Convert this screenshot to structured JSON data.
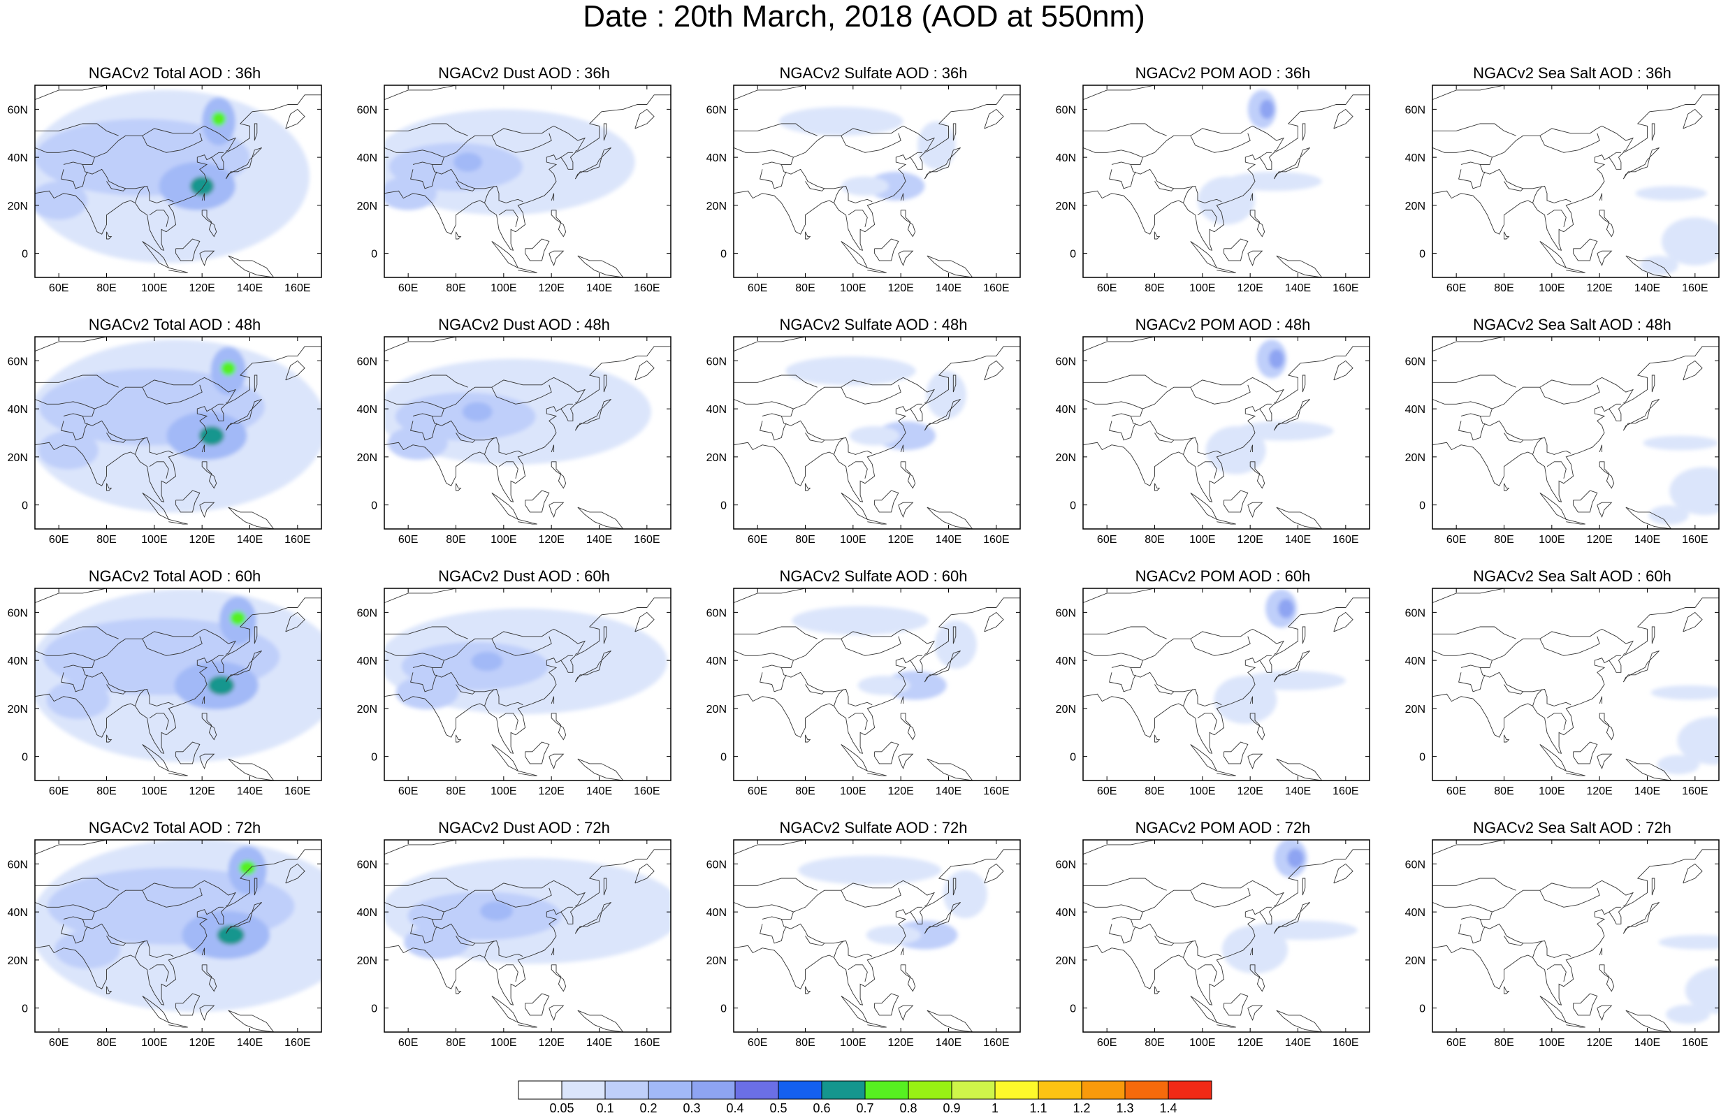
{
  "title": "Date : 20th March, 2018 (AOD at 550nm)",
  "lon_ticks": [
    "60E",
    "80E",
    "100E",
    "120E",
    "140E",
    "160E"
  ],
  "lat_ticks": [
    "60N",
    "40N",
    "20N",
    "0"
  ],
  "panels": [
    [
      {
        "title": "NGACv2 Total AOD : 36h",
        "species": "total",
        "hour": 36
      },
      {
        "title": "NGACv2 Dust AOD : 36h",
        "species": "dust",
        "hour": 36
      },
      {
        "title": "NGACv2 Sulfate AOD : 36h",
        "species": "sulfate",
        "hour": 36
      },
      {
        "title": "NGACv2 POM AOD : 36h",
        "species": "pom",
        "hour": 36
      },
      {
        "title": "NGACv2 Sea Salt AOD : 36h",
        "species": "seasalt",
        "hour": 36
      }
    ],
    [
      {
        "title": "NGACv2 Total AOD : 48h",
        "species": "total",
        "hour": 48
      },
      {
        "title": "NGACv2 Dust AOD : 48h",
        "species": "dust",
        "hour": 48
      },
      {
        "title": "NGACv2 Sulfate AOD : 48h",
        "species": "sulfate",
        "hour": 48
      },
      {
        "title": "NGACv2 POM AOD : 48h",
        "species": "pom",
        "hour": 48
      },
      {
        "title": "NGACv2 Sea Salt AOD : 48h",
        "species": "seasalt",
        "hour": 48
      }
    ],
    [
      {
        "title": "NGACv2 Total AOD : 60h",
        "species": "total",
        "hour": 60
      },
      {
        "title": "NGACv2 Dust AOD : 60h",
        "species": "dust",
        "hour": 60
      },
      {
        "title": "NGACv2 Sulfate AOD : 60h",
        "species": "sulfate",
        "hour": 60
      },
      {
        "title": "NGACv2 POM AOD : 60h",
        "species": "pom",
        "hour": 60
      },
      {
        "title": "NGACv2 Sea Salt AOD : 60h",
        "species": "seasalt",
        "hour": 60
      }
    ],
    [
      {
        "title": "NGACv2 Total AOD : 72h",
        "species": "total",
        "hour": 72
      },
      {
        "title": "NGACv2 Dust AOD : 72h",
        "species": "dust",
        "hour": 72
      },
      {
        "title": "NGACv2 Sulfate AOD : 72h",
        "species": "sulfate",
        "hour": 72
      },
      {
        "title": "NGACv2 POM AOD : 72h",
        "species": "pom",
        "hour": 72
      },
      {
        "title": "NGACv2 Sea Salt  AOD : 72h",
        "species": "seasalt",
        "hour": 72
      }
    ]
  ],
  "colorbar": {
    "labels": [
      "0.05",
      "0.1",
      "0.2",
      "0.3",
      "0.4",
      "0.5",
      "0.6",
      "0.7",
      "0.8",
      "0.9",
      "1",
      "1.1",
      "1.2",
      "1.3",
      "1.4"
    ],
    "colors": [
      "#ffffff",
      "#dbe5fb",
      "#bfcffa",
      "#a2b9f7",
      "#8ea4f2",
      "#6b6fe6",
      "#1460ef",
      "#15968e",
      "#57f021",
      "#98f114",
      "#cff54a",
      "#fef92b",
      "#fdc313",
      "#f99a0b",
      "#f66a0b",
      "#f12a16"
    ]
  }
}
